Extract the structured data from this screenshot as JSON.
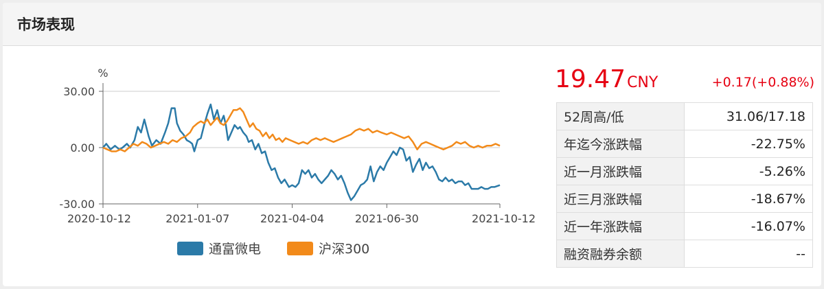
{
  "panel": {
    "title": "市场表现"
  },
  "quote": {
    "price": "19.47",
    "currency": "CNY",
    "change": "+0.17(+0.88%)",
    "accent_color": "#e60012"
  },
  "stats": [
    {
      "label": "52周高/低",
      "value": "31.06/17.18"
    },
    {
      "label": "年迄今涨跌幅",
      "value": "-22.75%"
    },
    {
      "label": "近一月涨跌幅",
      "value": "-5.26%"
    },
    {
      "label": "近三月涨跌幅",
      "value": "-18.67%"
    },
    {
      "label": "近一年涨跌幅",
      "value": "-16.07%"
    },
    {
      "label": "融资融券余额",
      "value": "--"
    }
  ],
  "chart_data": {
    "type": "line",
    "ylabel": "%",
    "ylim": [
      -30,
      30
    ],
    "yticks": [
      30,
      0,
      -30
    ],
    "ytick_labels": [
      "30.00",
      "0.00",
      "-30.00"
    ],
    "xlim": [
      "2020-10-12",
      "2021-10-12"
    ],
    "xticks": [
      "2020-10-12",
      "2021-01-07",
      "2021-04-04",
      "2021-06-30",
      "2021-10-12"
    ],
    "grid": true,
    "legend_position": "bottom",
    "series": [
      {
        "name": "通富微电",
        "color": "#2b7aa8",
        "points": [
          [
            "2020-10-12",
            0
          ],
          [
            "2020-10-15",
            2
          ],
          [
            "2020-10-19",
            -1
          ],
          [
            "2020-10-23",
            1
          ],
          [
            "2020-10-27",
            -1
          ],
          [
            "2020-10-30",
            0
          ],
          [
            "2020-11-03",
            2
          ],
          [
            "2020-11-06",
            0
          ],
          [
            "2020-11-10",
            4
          ],
          [
            "2020-11-13",
            11
          ],
          [
            "2020-11-16",
            8
          ],
          [
            "2020-11-19",
            15
          ],
          [
            "2020-11-23",
            6
          ],
          [
            "2020-11-26",
            1
          ],
          [
            "2020-11-30",
            4
          ],
          [
            "2020-12-04",
            2
          ],
          [
            "2020-12-08",
            8
          ],
          [
            "2020-12-11",
            13
          ],
          [
            "2020-12-14",
            21
          ],
          [
            "2020-12-17",
            21
          ],
          [
            "2020-12-19",
            13
          ],
          [
            "2020-12-22",
            9
          ],
          [
            "2020-12-25",
            7
          ],
          [
            "2020-12-28",
            4
          ],
          [
            "2020-12-31",
            3
          ],
          [
            "2021-01-02",
            2
          ],
          [
            "2021-01-04",
            -2
          ],
          [
            "2021-01-07",
            4
          ],
          [
            "2021-01-10",
            5
          ],
          [
            "2021-01-13",
            12
          ],
          [
            "2021-01-16",
            18
          ],
          [
            "2021-01-19",
            23
          ],
          [
            "2021-01-22",
            15
          ],
          [
            "2021-01-25",
            20
          ],
          [
            "2021-01-28",
            13
          ],
          [
            "2021-01-31",
            17
          ],
          [
            "2021-02-02",
            12
          ],
          [
            "2021-02-04",
            4
          ],
          [
            "2021-02-07",
            8
          ],
          [
            "2021-02-10",
            12
          ],
          [
            "2021-02-13",
            10
          ],
          [
            "2021-02-15",
            11
          ],
          [
            "2021-02-18",
            8
          ],
          [
            "2021-02-21",
            6
          ],
          [
            "2021-02-23",
            3
          ],
          [
            "2021-02-26",
            4
          ],
          [
            "2021-03-01",
            -1
          ],
          [
            "2021-03-04",
            2
          ],
          [
            "2021-03-07",
            -3
          ],
          [
            "2021-03-10",
            -2
          ],
          [
            "2021-03-13",
            -8
          ],
          [
            "2021-03-16",
            -12
          ],
          [
            "2021-03-19",
            -11
          ],
          [
            "2021-03-22",
            -16
          ],
          [
            "2021-03-25",
            -19
          ],
          [
            "2021-03-28",
            -17
          ],
          [
            "2021-04-01",
            -21
          ],
          [
            "2021-04-04",
            -20
          ],
          [
            "2021-04-07",
            -21
          ],
          [
            "2021-04-10",
            -19
          ],
          [
            "2021-04-13",
            -12
          ],
          [
            "2021-04-16",
            -14
          ],
          [
            "2021-04-19",
            -12
          ],
          [
            "2021-04-22",
            -16
          ],
          [
            "2021-04-25",
            -14
          ],
          [
            "2021-04-28",
            -17
          ],
          [
            "2021-05-01",
            -19
          ],
          [
            "2021-05-04",
            -17
          ],
          [
            "2021-05-07",
            -15
          ],
          [
            "2021-05-10",
            -12
          ],
          [
            "2021-05-13",
            -14
          ],
          [
            "2021-05-16",
            -17
          ],
          [
            "2021-05-19",
            -15
          ],
          [
            "2021-05-22",
            -19
          ],
          [
            "2021-05-25",
            -24
          ],
          [
            "2021-05-28",
            -28
          ],
          [
            "2021-05-31",
            -26
          ],
          [
            "2021-06-03",
            -23
          ],
          [
            "2021-06-06",
            -20
          ],
          [
            "2021-06-09",
            -19
          ],
          [
            "2021-06-12",
            -17
          ],
          [
            "2021-06-15",
            -10
          ],
          [
            "2021-06-18",
            -18
          ],
          [
            "2021-06-21",
            -13
          ],
          [
            "2021-06-24",
            -10
          ],
          [
            "2021-06-27",
            -12
          ],
          [
            "2021-06-30",
            -8
          ],
          [
            "2021-07-03",
            -5
          ],
          [
            "2021-07-06",
            -2
          ],
          [
            "2021-07-09",
            -4
          ],
          [
            "2021-07-12",
            0
          ],
          [
            "2021-07-15",
            -1
          ],
          [
            "2021-07-18",
            -7
          ],
          [
            "2021-07-21",
            -5
          ],
          [
            "2021-07-24",
            -13
          ],
          [
            "2021-07-27",
            -9
          ],
          [
            "2021-07-30",
            -6
          ],
          [
            "2021-08-02",
            -12
          ],
          [
            "2021-08-05",
            -8
          ],
          [
            "2021-08-08",
            -11
          ],
          [
            "2021-08-11",
            -10
          ],
          [
            "2021-08-14",
            -13
          ],
          [
            "2021-08-17",
            -17
          ],
          [
            "2021-08-20",
            -18
          ],
          [
            "2021-08-23",
            -16
          ],
          [
            "2021-08-26",
            -18
          ],
          [
            "2021-08-29",
            -17
          ],
          [
            "2021-09-01",
            -19
          ],
          [
            "2021-09-04",
            -18
          ],
          [
            "2021-09-07",
            -18
          ],
          [
            "2021-09-10",
            -20
          ],
          [
            "2021-09-13",
            -19
          ],
          [
            "2021-09-16",
            -22
          ],
          [
            "2021-09-19",
            -22
          ],
          [
            "2021-09-22",
            -22
          ],
          [
            "2021-09-25",
            -21
          ],
          [
            "2021-09-28",
            -22
          ],
          [
            "2021-10-01",
            -22
          ],
          [
            "2021-10-04",
            -21
          ],
          [
            "2021-10-07",
            -21
          ],
          [
            "2021-10-12",
            -20
          ]
        ]
      },
      {
        "name": "沪深300",
        "color": "#f28a1a",
        "points": [
          [
            "2020-10-12",
            0
          ],
          [
            "2020-10-16",
            -1
          ],
          [
            "2020-10-20",
            -2
          ],
          [
            "2020-10-24",
            -2
          ],
          [
            "2020-10-28",
            -1
          ],
          [
            "2020-11-01",
            -2
          ],
          [
            "2020-11-05",
            0
          ],
          [
            "2020-11-09",
            2
          ],
          [
            "2020-11-13",
            1
          ],
          [
            "2020-11-17",
            3
          ],
          [
            "2020-11-21",
            2
          ],
          [
            "2020-11-25",
            0
          ],
          [
            "2020-11-29",
            1
          ],
          [
            "2020-12-03",
            2
          ],
          [
            "2020-12-07",
            3
          ],
          [
            "2020-12-11",
            2
          ],
          [
            "2020-12-15",
            4
          ],
          [
            "2020-12-19",
            3
          ],
          [
            "2020-12-23",
            5
          ],
          [
            "2020-12-27",
            6
          ],
          [
            "2020-12-31",
            8
          ],
          [
            "2021-01-03",
            11
          ],
          [
            "2021-01-07",
            13
          ],
          [
            "2021-01-10",
            14
          ],
          [
            "2021-01-13",
            13
          ],
          [
            "2021-01-16",
            15
          ],
          [
            "2021-01-19",
            12
          ],
          [
            "2021-01-22",
            14
          ],
          [
            "2021-01-25",
            16
          ],
          [
            "2021-01-28",
            13
          ],
          [
            "2021-01-31",
            12
          ],
          [
            "2021-02-03",
            14
          ],
          [
            "2021-02-06",
            17
          ],
          [
            "2021-02-09",
            20
          ],
          [
            "2021-02-12",
            20
          ],
          [
            "2021-02-15",
            21
          ],
          [
            "2021-02-18",
            19
          ],
          [
            "2021-02-21",
            15
          ],
          [
            "2021-02-24",
            11
          ],
          [
            "2021-02-27",
            13
          ],
          [
            "2021-03-02",
            10
          ],
          [
            "2021-03-05",
            9
          ],
          [
            "2021-03-08",
            6
          ],
          [
            "2021-03-11",
            8
          ],
          [
            "2021-03-14",
            5
          ],
          [
            "2021-03-17",
            7
          ],
          [
            "2021-03-20",
            4
          ],
          [
            "2021-03-23",
            5
          ],
          [
            "2021-03-26",
            3
          ],
          [
            "2021-03-29",
            5
          ],
          [
            "2021-04-02",
            4
          ],
          [
            "2021-04-06",
            3
          ],
          [
            "2021-04-10",
            2
          ],
          [
            "2021-04-14",
            3
          ],
          [
            "2021-04-18",
            2
          ],
          [
            "2021-04-22",
            4
          ],
          [
            "2021-04-26",
            5
          ],
          [
            "2021-04-30",
            4
          ],
          [
            "2021-05-04",
            5
          ],
          [
            "2021-05-08",
            4
          ],
          [
            "2021-05-12",
            3
          ],
          [
            "2021-05-16",
            4
          ],
          [
            "2021-05-20",
            5
          ],
          [
            "2021-05-24",
            6
          ],
          [
            "2021-05-28",
            7
          ],
          [
            "2021-06-01",
            9
          ],
          [
            "2021-06-05",
            10
          ],
          [
            "2021-06-09",
            9
          ],
          [
            "2021-06-13",
            10
          ],
          [
            "2021-06-17",
            8
          ],
          [
            "2021-06-21",
            9
          ],
          [
            "2021-06-25",
            8
          ],
          [
            "2021-06-30",
            7
          ],
          [
            "2021-07-04",
            8
          ],
          [
            "2021-07-08",
            7
          ],
          [
            "2021-07-12",
            6
          ],
          [
            "2021-07-16",
            5
          ],
          [
            "2021-07-20",
            6
          ],
          [
            "2021-07-24",
            3
          ],
          [
            "2021-07-28",
            -1
          ],
          [
            "2021-08-01",
            2
          ],
          [
            "2021-08-05",
            3
          ],
          [
            "2021-08-09",
            2
          ],
          [
            "2021-08-13",
            1
          ],
          [
            "2021-08-17",
            0
          ],
          [
            "2021-08-21",
            -1
          ],
          [
            "2021-08-25",
            0
          ],
          [
            "2021-08-29",
            1
          ],
          [
            "2021-09-02",
            3
          ],
          [
            "2021-09-06",
            2
          ],
          [
            "2021-09-10",
            3
          ],
          [
            "2021-09-14",
            1
          ],
          [
            "2021-09-18",
            0
          ],
          [
            "2021-09-22",
            1
          ],
          [
            "2021-09-26",
            0
          ],
          [
            "2021-09-30",
            1
          ],
          [
            "2021-10-04",
            1
          ],
          [
            "2021-10-08",
            2
          ],
          [
            "2021-10-12",
            1
          ]
        ]
      }
    ]
  }
}
